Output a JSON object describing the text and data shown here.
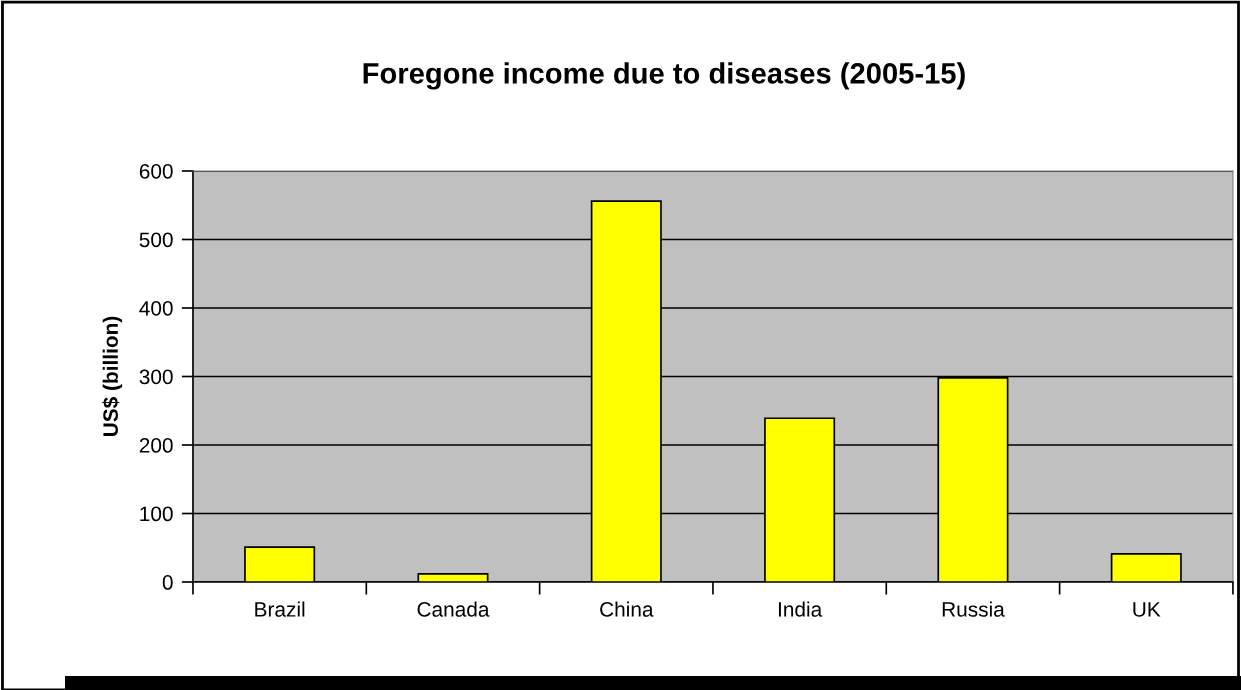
{
  "chart_data": {
    "type": "bar",
    "title": "Foregone income due to diseases (2005-15)",
    "ylabel": "US$ (billion)",
    "categories": [
      "Brazil",
      "Canada",
      "China",
      "India",
      "Russia",
      "UK"
    ],
    "values": [
      51,
      12,
      556,
      239,
      298,
      41
    ],
    "color": "#ffff00",
    "ylim": [
      0,
      600
    ],
    "yticks": [
      0,
      100,
      200,
      300,
      400,
      500,
      600
    ],
    "grid": "y",
    "legend": false
  }
}
